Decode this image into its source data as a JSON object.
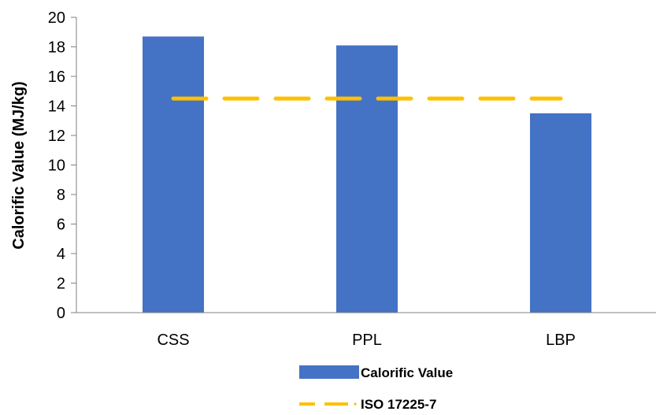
{
  "chart_data": {
    "type": "bar",
    "categories": [
      "CSS",
      "PPL",
      "LBP"
    ],
    "series": [
      {
        "name": "Calorific Value",
        "type": "bar",
        "values": [
          18.7,
          18.1,
          13.5
        ],
        "color": "#4472C4"
      },
      {
        "name": "ISO 17225-7",
        "type": "line",
        "style": "dashed",
        "values": [
          14.5,
          14.5,
          14.5
        ],
        "color": "#FFC000"
      }
    ],
    "ylabel": "Calorific Value (MJ/kg)",
    "xlabel": "",
    "ylim": [
      0,
      20
    ],
    "yticks": [
      0,
      2,
      4,
      6,
      8,
      10,
      12,
      14,
      16,
      18,
      20
    ],
    "grid": false,
    "legend_position": "bottom"
  }
}
